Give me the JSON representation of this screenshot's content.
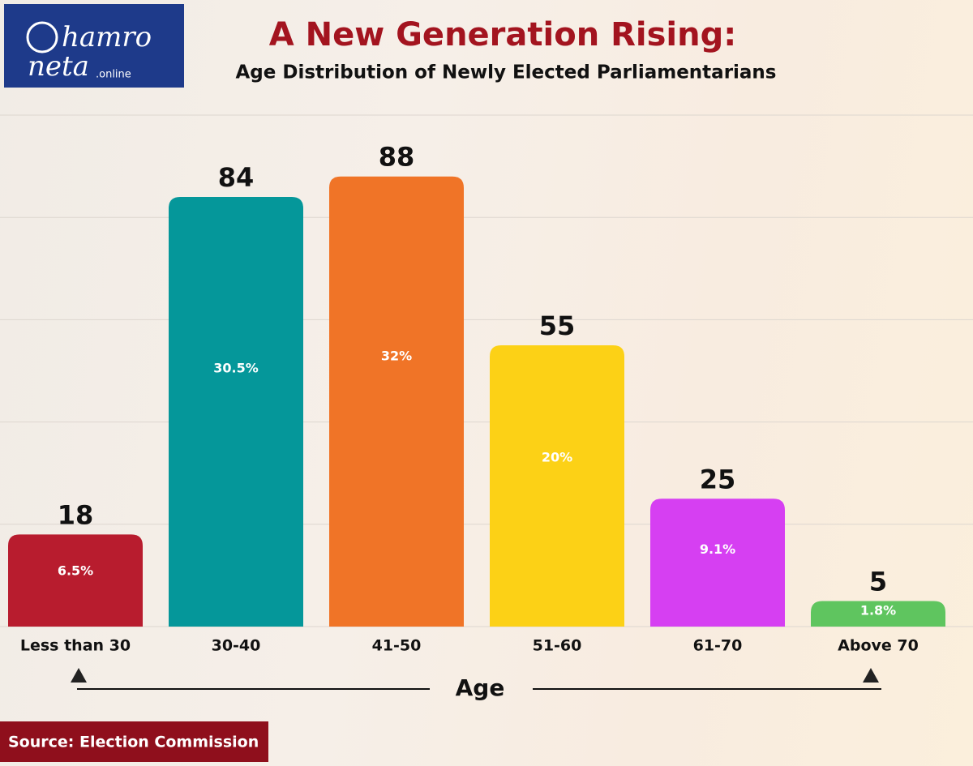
{
  "logo": {
    "line1": "hamro",
    "line2": "neta",
    "suffix": ".online"
  },
  "source": "Source: Election Commission",
  "chart_data": {
    "type": "bar",
    "title": "A New Generation Rising:",
    "subtitle": "Age Distribution of Newly Elected Parliamentarians",
    "x_label": "Age",
    "categories": [
      "Less than 30",
      "30-40",
      "41-50",
      "51-60",
      "61-70",
      "Above 70"
    ],
    "values": [
      18,
      84,
      88,
      55,
      25,
      5
    ],
    "percent_labels": [
      "6.5%",
      "30.5%",
      "32%",
      "20%",
      "9.1%",
      "1.8%"
    ],
    "colors": [
      "#b81c2e",
      "#05979a",
      "#f07427",
      "#fcd116",
      "#d63ff2",
      "#5fc55f"
    ],
    "ylim": [
      0,
      100
    ],
    "yticks": [
      0,
      20,
      40,
      60,
      80,
      100
    ],
    "grid": true
  }
}
